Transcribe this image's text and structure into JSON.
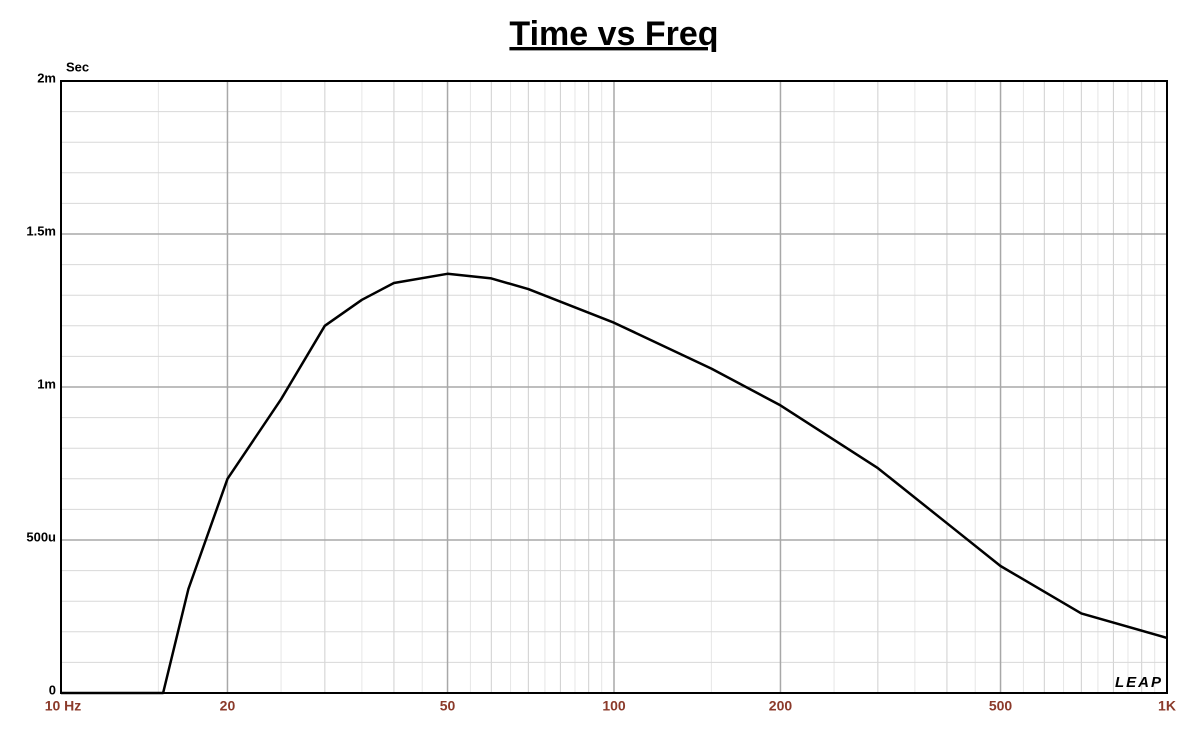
{
  "chart_data": {
    "type": "line",
    "title": "Time vs Freq",
    "y_unit": "Sec",
    "logo": "LEAP",
    "x": [
      10,
      15.3,
      17,
      20,
      25,
      30,
      35,
      40,
      50,
      60,
      70,
      100,
      150,
      200,
      300,
      400,
      500,
      700,
      1000
    ],
    "series": [
      {
        "name": "Time",
        "color": "#000000",
        "values": [
          0,
          0,
          0.00034,
          0.0007,
          0.00096,
          0.0012,
          0.001285,
          0.00134,
          0.00137,
          0.001355,
          0.00132,
          0.00121,
          0.00106,
          0.00094,
          0.000735,
          0.000555,
          0.000415,
          0.00026,
          0.00018
        ]
      }
    ],
    "xlim": [
      10,
      1000
    ],
    "xscale": "log",
    "xticks": [
      {
        "value": 10,
        "label": "10  Hz"
      },
      20,
      50,
      100,
      200,
      500,
      {
        "value": 1000,
        "label": "1K"
      }
    ],
    "ylim": [
      0,
      0.002
    ],
    "yticks": [
      0,
      {
        "value": 0.0005,
        "label": "500u"
      },
      {
        "value": 0.001,
        "label": "1m"
      },
      {
        "value": 0.0015,
        "label": "1.5m"
      },
      {
        "value": 0.002,
        "label": "2m"
      }
    ],
    "grid": true,
    "minor_grid": true
  }
}
